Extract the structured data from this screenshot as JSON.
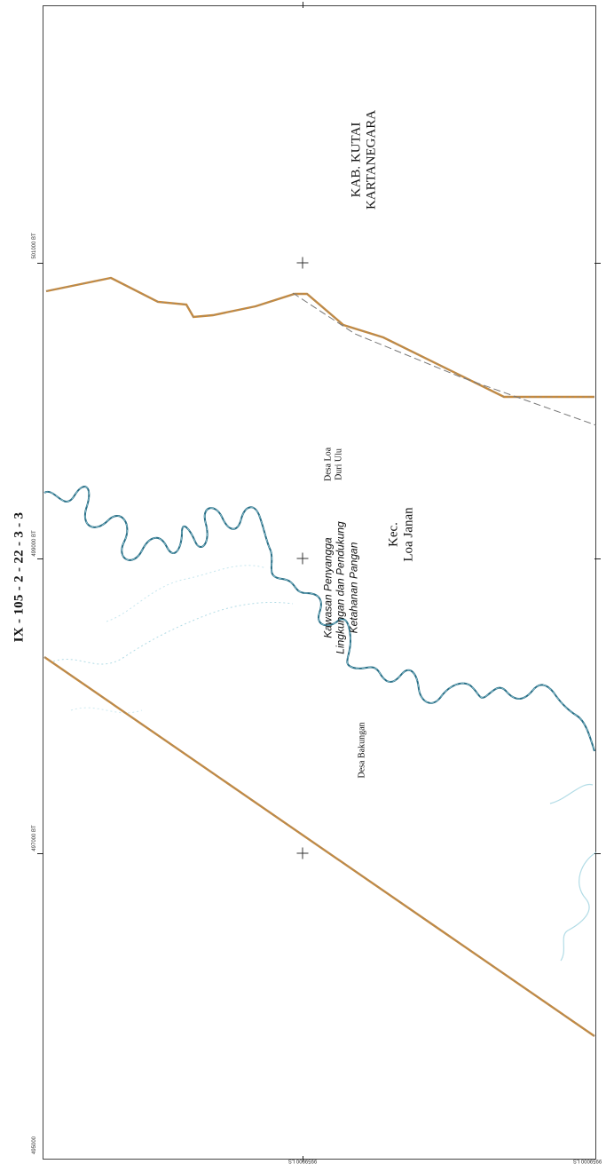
{
  "map": {
    "sheet_id": "IX - 105 - 2 - 22 - 3 - 3",
    "left_coords": [
      "501000 BT",
      "499000 BT",
      "497000 BT",
      "495000"
    ],
    "bottom_coords": [
      "9959000 LS",
      "9959000 LS"
    ],
    "labels": {
      "kab_line1": "KAB. KUTAI",
      "kab_line2": "KARTANEGARA",
      "desa_loa_line1": "Desa Loa",
      "desa_loa_line2": "Duri Ulu",
      "kec_line1": "Kec.",
      "kec_line2": "Loa Janan",
      "zone_line1": "Kawasan Penyangga",
      "zone_line2": "Lingkungan dan Pendukung",
      "zone_line3": "Ketahanan Pangan",
      "desa_bakungan": "Desa Bakungan"
    },
    "colors": {
      "boundary": "#c98a3a",
      "boundary_dash": "#8a8a8a",
      "river": "#2a6f86",
      "stream": "#9fd3e0",
      "frame": "#444444"
    }
  }
}
